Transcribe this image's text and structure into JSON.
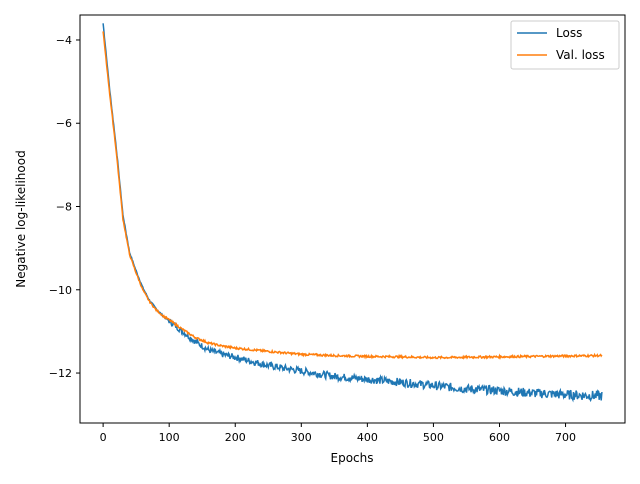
{
  "chart_data": {
    "type": "line",
    "title": "",
    "xlabel": "Epochs",
    "ylabel": "Negative log-likelihood",
    "xlim": [
      -35,
      790
    ],
    "ylim": [
      -13.2,
      -3.4
    ],
    "xticks": [
      0,
      100,
      200,
      300,
      400,
      500,
      600,
      700
    ],
    "yticks": [
      -12,
      -10,
      -8,
      -6,
      -4
    ],
    "grid": false,
    "legend_position": "top-right",
    "series": [
      {
        "name": "Loss",
        "color": "#1f77b4",
        "x": [
          0,
          10,
          20,
          30,
          40,
          50,
          60,
          70,
          80,
          90,
          100,
          120,
          140,
          160,
          180,
          200,
          250,
          300,
          350,
          400,
          450,
          500,
          550,
          600,
          650,
          700,
          755
        ],
        "y": [
          -3.6,
          -5.2,
          -6.6,
          -8.2,
          -9.1,
          -9.55,
          -9.95,
          -10.25,
          -10.45,
          -10.62,
          -10.75,
          -11.0,
          -11.25,
          -11.45,
          -11.55,
          -11.62,
          -11.82,
          -11.95,
          -12.08,
          -12.15,
          -12.22,
          -12.3,
          -12.38,
          -12.42,
          -12.48,
          -12.52,
          -12.55
        ]
      },
      {
        "name": "Val. loss",
        "color": "#ff7f0e",
        "x": [
          0,
          10,
          20,
          30,
          40,
          50,
          60,
          70,
          80,
          90,
          100,
          120,
          140,
          160,
          180,
          200,
          250,
          300,
          350,
          400,
          450,
          500,
          550,
          600,
          650,
          700,
          755
        ],
        "y": [
          -3.8,
          -5.3,
          -6.7,
          -8.3,
          -9.15,
          -9.6,
          -10.0,
          -10.28,
          -10.48,
          -10.62,
          -10.72,
          -10.95,
          -11.15,
          -11.28,
          -11.35,
          -11.4,
          -11.48,
          -11.55,
          -11.58,
          -11.6,
          -11.61,
          -11.63,
          -11.62,
          -11.61,
          -11.6,
          -11.59,
          -11.58
        ]
      }
    ]
  }
}
